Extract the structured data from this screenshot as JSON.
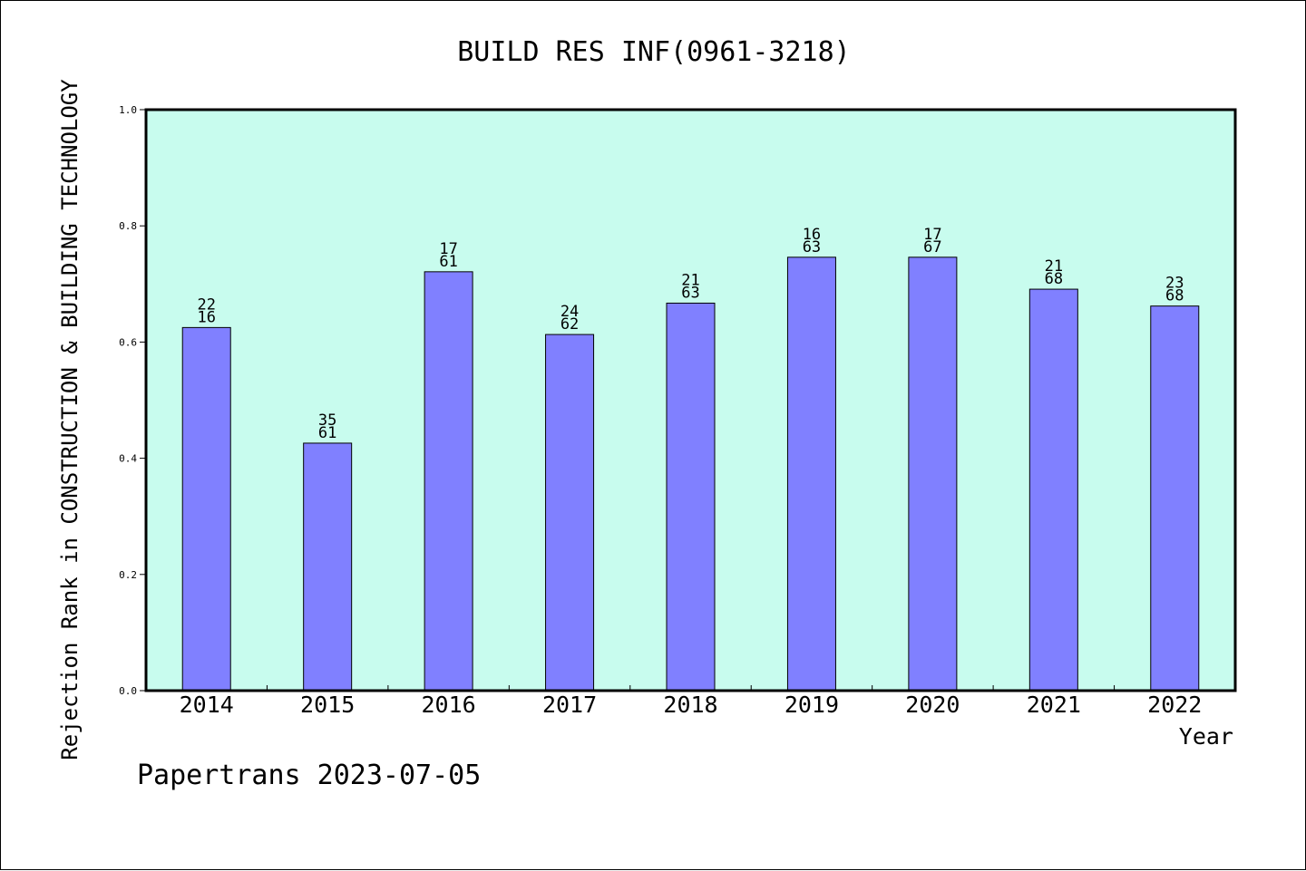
{
  "chart_data": {
    "type": "bar",
    "title": "BUILD RES INF(0961-3218)",
    "xlabel": "Year",
    "ylabel": "Rejection Rank in CONSTRUCTION & BUILDING TECHNOLOGY",
    "ylim": [
      0,
      1.0
    ],
    "yticks": [
      "0.0",
      "0.2",
      "0.4",
      "0.6",
      "0.8",
      "1.0"
    ],
    "categories": [
      "2014",
      "2015",
      "2016",
      "2017",
      "2018",
      "2019",
      "2020",
      "2021",
      "2022"
    ],
    "values": [
      0.625,
      0.426,
      0.721,
      0.613,
      0.667,
      0.746,
      0.746,
      0.691,
      0.662
    ],
    "labels_top": [
      "22",
      "35",
      "17",
      "24",
      "21",
      "16",
      "17",
      "21",
      "23"
    ],
    "labels_bottom": [
      "16",
      "61",
      "61",
      "62",
      "63",
      "63",
      "67",
      "68",
      "68"
    ],
    "plot_background": "#c8fcee",
    "bar_color": "#8080ff",
    "grid": false,
    "legend": "none"
  },
  "footer": "Papertrans 2023-07-05"
}
